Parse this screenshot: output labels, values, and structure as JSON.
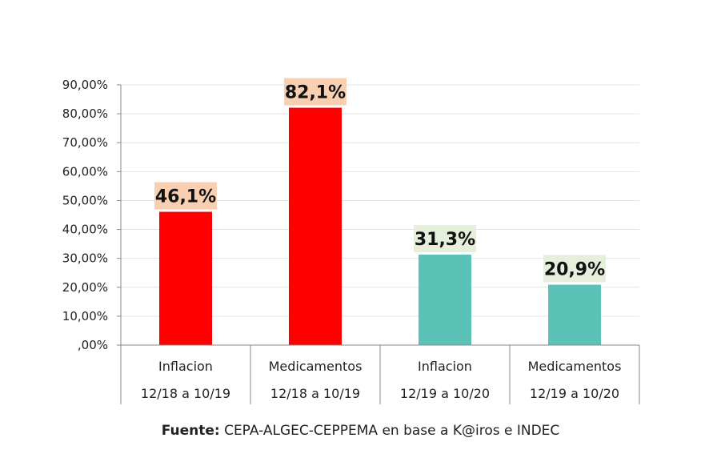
{
  "chart_data": {
    "type": "bar",
    "categories": [
      {
        "line1": "Inflacion",
        "line2": "12/18 a 10/19"
      },
      {
        "line1": "Medicamentos",
        "line2": "12/18 a 10/19"
      },
      {
        "line1": "Inflacion",
        "line2": "12/19 a 10/20"
      },
      {
        "line1": "Medicamentos",
        "line2": "12/19 a 10/20"
      }
    ],
    "values": [
      46.1,
      82.1,
      31.3,
      20.9
    ],
    "data_labels": [
      "46,1%",
      "82,1%",
      "31,3%",
      "20,9%"
    ],
    "bar_colors": [
      "#ff0000",
      "#ff0000",
      "#5bc2b8",
      "#5bc2b8"
    ],
    "label_bg_colors": [
      "#f8cfb0",
      "#f8cfb0",
      "#e6eedc",
      "#e6eedc"
    ],
    "ylim": [
      0,
      90
    ],
    "yticks": [
      0,
      10,
      20,
      30,
      40,
      50,
      60,
      70,
      80,
      90
    ],
    "ytick_labels": [
      ",00%",
      "10,00%",
      "20,00%",
      "30,00%",
      "40,00%",
      "50,00%",
      "60,00%",
      "70,00%",
      "80,00%",
      "90,00%"
    ],
    "grid": true,
    "legend": "none"
  },
  "source": {
    "prefix": "Fuente:",
    "text": " CEPA-ALGEC-CEPPEMA en base a K@iros e INDEC"
  }
}
